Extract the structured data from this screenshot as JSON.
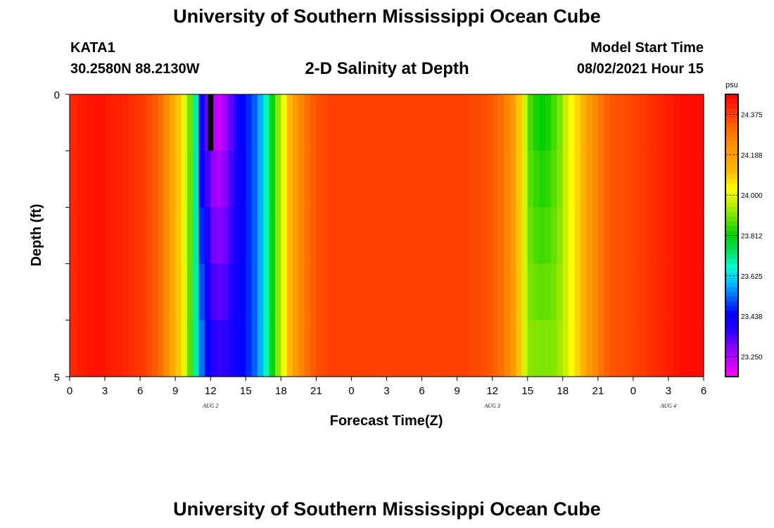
{
  "header": {
    "title": "University of Southern Mississippi Ocean Cube",
    "station": "KATA1",
    "coordinates": "30.2580N  88.2130W",
    "plot_title": "2-D Salinity at Depth",
    "model_start_label": "Model Start Time",
    "model_start_value": "08/02/2021 Hour 15"
  },
  "footer": {
    "title": "University of Southern Mississippi Ocean Cube"
  },
  "chart_data": {
    "type": "heatmap",
    "title": "2-D Salinity at Depth",
    "xlabel": "Forecast Time(Z)",
    "ylabel": "Depth (ft)",
    "x_tick_labels": [
      "0",
      "3",
      "6",
      "9",
      "12",
      "15",
      "18",
      "21",
      "0",
      "3",
      "6",
      "9",
      "12",
      "15",
      "18",
      "21",
      "0",
      "3",
      "6"
    ],
    "date_labels": [
      {
        "text": "AUG 2",
        "tick_index": 4
      },
      {
        "text": "AUG 3",
        "tick_index": 12
      },
      {
        "text": "AUG 4",
        "tick_index": 17
      }
    ],
    "y_tick_labels": [
      "0",
      "5"
    ],
    "ylim": [
      0,
      5
    ],
    "y_ticks": [
      0,
      1,
      2,
      3,
      4,
      5
    ],
    "hours": [
      0,
      0.5,
      1,
      1.5,
      2,
      2.5,
      3,
      3.5,
      4,
      4.5,
      5,
      5.5,
      6,
      6.5,
      7,
      7.5,
      8,
      8.5,
      9,
      9.5,
      10,
      10.5,
      11,
      11.5,
      12,
      12.5,
      13,
      13.5,
      14,
      14.5,
      15,
      15.5,
      16,
      16.5,
      17,
      17.5,
      18,
      18.5,
      19,
      19.5,
      20,
      20.5,
      21,
      21.5,
      22,
      22.5,
      23,
      23.5,
      24,
      24.5,
      25,
      25.5,
      26,
      26.5,
      27,
      27.5,
      28,
      28.5,
      29,
      29.5,
      30,
      30.5,
      31,
      31.5,
      32,
      32.5,
      33,
      33.5,
      34,
      34.5,
      35,
      35.5,
      36,
      36.5,
      37,
      37.5,
      38,
      38.5,
      39,
      39.5,
      40,
      40.5,
      41,
      41.5,
      42,
      42.5,
      43,
      43.5,
      44,
      44.5,
      45,
      45.5,
      46,
      46.5,
      47,
      47.5,
      48,
      48.5,
      49,
      49.5,
      50,
      50.5,
      51,
      51.5,
      52,
      52.5,
      53,
      53.5
    ],
    "salinity_surface": [
      24.41,
      24.42,
      24.43,
      24.44,
      24.44,
      24.44,
      24.43,
      24.42,
      24.42,
      24.41,
      24.4,
      24.39,
      24.38,
      24.36,
      24.33,
      24.3,
      24.24,
      24.16,
      24.1,
      24.0,
      23.9,
      23.7,
      23.4,
      23.3,
      23.22,
      23.2,
      23.25,
      23.32,
      23.4,
      23.45,
      23.48,
      23.52,
      23.58,
      23.68,
      23.8,
      23.92,
      24.02,
      24.12,
      24.2,
      24.26,
      24.3,
      24.33,
      24.35,
      24.36,
      24.37,
      24.37,
      24.37,
      24.37,
      24.37,
      24.37,
      24.37,
      24.37,
      24.37,
      24.37,
      24.37,
      24.37,
      24.37,
      24.37,
      24.37,
      24.37,
      24.37,
      24.37,
      24.37,
      24.37,
      24.37,
      24.37,
      24.37,
      24.37,
      24.36,
      24.36,
      24.35,
      24.34,
      24.32,
      24.3,
      24.26,
      24.2,
      24.1,
      23.98,
      23.86,
      23.82,
      23.8,
      23.82,
      23.86,
      23.9,
      23.97,
      24.03,
      24.08,
      24.14,
      24.2,
      24.25,
      24.29,
      24.32,
      24.34,
      24.35,
      24.35,
      24.36,
      24.37,
      24.38,
      24.39,
      24.4,
      24.41,
      24.42,
      24.43,
      24.44,
      24.45,
      24.45,
      24.45,
      24.45
    ],
    "salinity_bottom": [
      24.41,
      24.42,
      24.43,
      24.44,
      24.44,
      24.44,
      24.43,
      24.42,
      24.42,
      24.41,
      24.4,
      24.39,
      24.38,
      24.36,
      24.33,
      24.3,
      24.24,
      24.16,
      24.1,
      24.0,
      23.88,
      23.7,
      23.55,
      23.45,
      23.4,
      23.38,
      23.38,
      23.4,
      23.42,
      23.45,
      23.48,
      23.52,
      23.58,
      23.68,
      23.8,
      23.92,
      24.02,
      24.12,
      24.2,
      24.26,
      24.3,
      24.33,
      24.35,
      24.36,
      24.37,
      24.37,
      24.37,
      24.37,
      24.37,
      24.37,
      24.37,
      24.37,
      24.37,
      24.37,
      24.37,
      24.37,
      24.37,
      24.37,
      24.37,
      24.37,
      24.37,
      24.37,
      24.37,
      24.37,
      24.37,
      24.37,
      24.37,
      24.37,
      24.36,
      24.36,
      24.35,
      24.34,
      24.32,
      24.3,
      24.26,
      24.2,
      24.1,
      23.98,
      23.92,
      23.92,
      23.92,
      23.92,
      23.92,
      23.94,
      23.97,
      24.03,
      24.08,
      24.14,
      24.2,
      24.25,
      24.29,
      24.32,
      24.34,
      24.35,
      24.35,
      24.36,
      24.37,
      24.38,
      24.39,
      24.4,
      24.41,
      24.42,
      24.43,
      24.44,
      24.45,
      24.45,
      24.45,
      24.45
    ],
    "missing_cells": [
      {
        "hour": 12,
        "depth_from": 0,
        "depth_to": 1
      }
    ],
    "colorbar": {
      "unit": "psu",
      "ticks": [
        "24.375",
        "24.188",
        "24.000",
        "23.812",
        "23.625",
        "23.438",
        "23.250"
      ],
      "tick_values": [
        24.375,
        24.188,
        24.0,
        23.812,
        23.625,
        23.438,
        23.25
      ],
      "range": [
        23.156,
        24.469
      ],
      "colors": [
        "#ff00ff",
        "#c000ff",
        "#8000ff",
        "#2000ff",
        "#0000ff",
        "#0060ff",
        "#00c0ff",
        "#00ffd0",
        "#00e060",
        "#00d000",
        "#60e000",
        "#c0f000",
        "#ffff00",
        "#ffc000",
        "#ffa000",
        "#ff8c00",
        "#ff6000",
        "#ff3000",
        "#ff0000"
      ]
    }
  }
}
